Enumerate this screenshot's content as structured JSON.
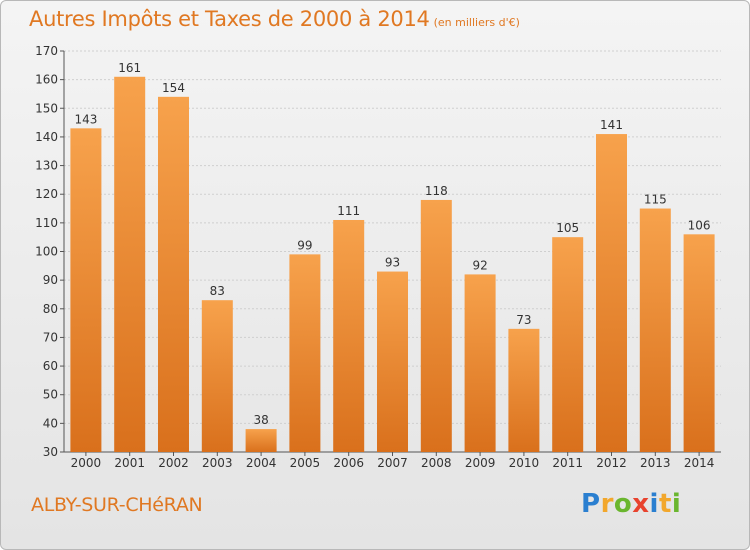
{
  "header": {
    "title": "Autres Impôts et Taxes de 2000 à 2014",
    "unit": "(en milliers d'€)"
  },
  "footer": {
    "city": "ALBY-SUR-CHéRAN",
    "logo_letters": [
      {
        "char": "P",
        "color": "#2a7fd0"
      },
      {
        "char": "r",
        "color": "#f2a72c"
      },
      {
        "char": "o",
        "color": "#6ab62e"
      },
      {
        "char": "x",
        "color": "#e8432e"
      },
      {
        "char": "i",
        "color": "#2a7fd0"
      },
      {
        "char": "t",
        "color": "#f2a72c"
      },
      {
        "char": "i",
        "color": "#6ab62e"
      }
    ]
  },
  "chart_data": {
    "type": "bar",
    "title": "Autres Impôts et Taxes de 2000 à 2014",
    "subtitle": "(en milliers d'€)",
    "xlabel": "",
    "ylabel": "",
    "categories": [
      "2000",
      "2001",
      "2002",
      "2003",
      "2004",
      "2005",
      "2006",
      "2007",
      "2008",
      "2009",
      "2010",
      "2011",
      "2012",
      "2013",
      "2014"
    ],
    "values": [
      143,
      161,
      154,
      83,
      38,
      99,
      111,
      93,
      118,
      92,
      73,
      105,
      141,
      115,
      106
    ],
    "ylim": [
      30,
      170
    ],
    "yticks": [
      30,
      40,
      50,
      60,
      70,
      80,
      90,
      100,
      110,
      120,
      130,
      140,
      150,
      160,
      170
    ],
    "grid": true,
    "colors": {
      "bar_light": "#f7a24c",
      "bar_dark": "#d9701c",
      "grid": "#cfcfcf",
      "accent": "#e07822"
    }
  }
}
